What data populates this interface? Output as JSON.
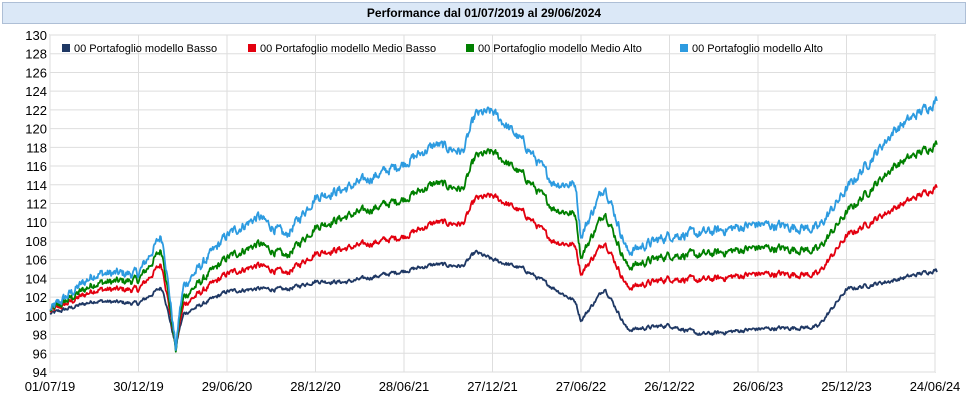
{
  "chart_data": {
    "type": "line",
    "title": "Performance dal 01/07/2019 al 29/06/2024",
    "xlabel": "",
    "ylabel": "",
    "ylim": [
      94,
      130
    ],
    "yticks": [
      94,
      96,
      98,
      100,
      102,
      104,
      106,
      108,
      110,
      112,
      114,
      116,
      118,
      120,
      122,
      124,
      126,
      128,
      130
    ],
    "grid": true,
    "legend_position": "top-left",
    "x_tick_labels": [
      "01/07/19",
      "30/12/19",
      "29/06/20",
      "28/12/20",
      "28/06/21",
      "27/12/21",
      "27/06/22",
      "26/12/22",
      "26/06/23",
      "25/12/23",
      "24/06/24"
    ],
    "x": [
      "01/07/19",
      "01/10/19",
      "30/12/19",
      "14/02/20",
      "20/02/20",
      "16/03/20",
      "23/03/20",
      "01/04/20",
      "29/06/20",
      "01/09/20",
      "28/10/20",
      "28/12/20",
      "01/03/21",
      "28/06/21",
      "01/09/21",
      "27/10/21",
      "22/11/21",
      "27/12/21",
      "01/03/22",
      "01/05/22",
      "16/06/22",
      "27/06/22",
      "15/08/22",
      "01/10/22",
      "26/12/22",
      "01/03/23",
      "26/06/23",
      "27/10/23",
      "25/12/23",
      "01/04/24",
      "24/06/24",
      "29/06/24"
    ],
    "series": [
      {
        "name": "00 Portafoglio modello Basso",
        "color": "#1f3864",
        "values": [
          100.2,
          101.6,
          101.3,
          103.0,
          102.5,
          96.6,
          98.5,
          100.2,
          102.6,
          102.9,
          102.8,
          103.7,
          103.6,
          104.8,
          105.5,
          105.3,
          106.8,
          106.0,
          105.0,
          103.0,
          101.5,
          99.5,
          103.0,
          98.5,
          99.0,
          98.0,
          98.6,
          98.8,
          102.8,
          103.8,
          104.9,
          104.7
        ]
      },
      {
        "name": "00 Portafoglio modello Medio Basso",
        "color": "#e3000f",
        "values": [
          100.4,
          102.8,
          102.8,
          105.5,
          104.5,
          96.5,
          99.0,
          101.2,
          104.5,
          105.4,
          104.5,
          106.7,
          107.2,
          108.5,
          110.0,
          109.8,
          112.5,
          112.8,
          111.0,
          108.0,
          107.5,
          104.5,
          108.0,
          103.0,
          104.0,
          103.8,
          104.5,
          104.4,
          108.5,
          111.5,
          113.7,
          113.8
        ]
      },
      {
        "name": "00 Portafoglio modello Medio Alto",
        "color": "#008000",
        "values": [
          100.5,
          103.5,
          103.8,
          107.0,
          106.0,
          96.2,
          99.6,
          102.0,
          106.2,
          107.7,
          106.3,
          109.5,
          110.6,
          112.5,
          114.2,
          113.5,
          117.0,
          117.5,
          115.0,
          111.5,
          110.8,
          106.3,
          111.2,
          105.2,
          106.5,
          106.5,
          107.3,
          107.0,
          111.0,
          116.0,
          118.3,
          118.4
        ]
      },
      {
        "name": "00 Portafoglio modello Alto",
        "color": "#2d9be0",
        "values": [
          100.6,
          104.5,
          104.5,
          108.5,
          107.5,
          96.4,
          100.2,
          103.2,
          108.6,
          110.6,
          108.5,
          112.7,
          113.6,
          116.3,
          118.3,
          117.5,
          121.5,
          121.8,
          118.5,
          114.2,
          114.0,
          108.5,
          114.0,
          106.8,
          108.6,
          108.8,
          109.8,
          109.3,
          113.5,
          119.8,
          122.9,
          123.1
        ]
      }
    ]
  }
}
